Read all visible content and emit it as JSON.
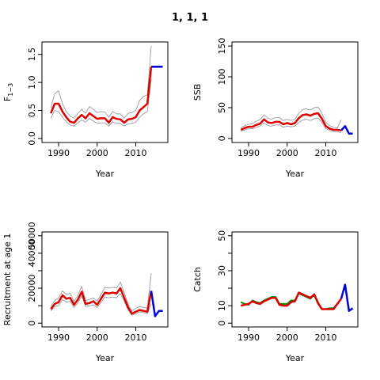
{
  "figure": {
    "title": "1, 1, 1"
  },
  "chart_data": [
    {
      "type": "line",
      "ylabel": "F",
      "ylabel_sub": "1−3",
      "xlabel": "Year",
      "xlim": [
        1987,
        2017
      ],
      "ylim": [
        0,
        1.65
      ],
      "xticks": [
        1990,
        2000,
        2010
      ],
      "yticks": [
        0.0,
        0.5,
        1.0,
        1.5
      ],
      "ytick_labels": [
        "0.0",
        "0.5",
        "1.0",
        "1.5"
      ],
      "series": [
        {
          "color": "#e00000",
          "role": "estimate",
          "x": [
            1988,
            1989,
            1990,
            1991,
            1992,
            1993,
            1994,
            1995,
            1996,
            1997,
            1998,
            1999,
            2000,
            2001,
            2002,
            2003,
            2004,
            2005,
            2006,
            2007,
            2008,
            2009,
            2010,
            2011,
            2012,
            2013,
            2014
          ],
          "y": [
            0.45,
            0.62,
            0.62,
            0.48,
            0.38,
            0.3,
            0.28,
            0.36,
            0.42,
            0.36,
            0.45,
            0.4,
            0.35,
            0.36,
            0.36,
            0.28,
            0.38,
            0.35,
            0.34,
            0.28,
            0.34,
            0.35,
            0.38,
            0.5,
            0.56,
            0.62,
            1.28
          ]
        },
        {
          "color": "#909090",
          "role": "upper",
          "x": [
            1988,
            1989,
            1990,
            1991,
            1992,
            1993,
            1994,
            1995,
            1996,
            1997,
            1998,
            1999,
            2000,
            2001,
            2002,
            2003,
            2004,
            2005,
            2006,
            2007,
            2008,
            2009,
            2010,
            2011,
            2012,
            2013,
            2014
          ],
          "y": [
            0.55,
            0.8,
            0.85,
            0.62,
            0.48,
            0.4,
            0.36,
            0.45,
            0.52,
            0.45,
            0.57,
            0.52,
            0.46,
            0.48,
            0.47,
            0.38,
            0.48,
            0.44,
            0.44,
            0.36,
            0.45,
            0.46,
            0.5,
            0.68,
            0.75,
            0.78,
            1.65
          ]
        },
        {
          "color": "#909090",
          "role": "lower",
          "x": [
            1988,
            1989,
            1990,
            1991,
            1992,
            1993,
            1994,
            1995,
            1996,
            1997,
            1998,
            1999,
            2000,
            2001,
            2002,
            2003,
            2004,
            2005,
            2006,
            2007,
            2008,
            2009,
            2010,
            2011,
            2012,
            2013,
            2014
          ],
          "y": [
            0.36,
            0.5,
            0.48,
            0.38,
            0.3,
            0.24,
            0.22,
            0.28,
            0.33,
            0.29,
            0.36,
            0.31,
            0.27,
            0.28,
            0.28,
            0.22,
            0.3,
            0.27,
            0.27,
            0.22,
            0.26,
            0.27,
            0.29,
            0.38,
            0.44,
            0.48,
            1.05
          ]
        },
        {
          "color": "#0000dd",
          "role": "projection",
          "x": [
            2014,
            2015,
            2016,
            2017
          ],
          "y": [
            1.28,
            1.28,
            1.28,
            1.28
          ]
        }
      ]
    },
    {
      "type": "line",
      "ylabel": "SSB",
      "ylabel_sub": "",
      "xlabel": "Year",
      "xlim": [
        1987,
        2017
      ],
      "ylim": [
        0,
        150
      ],
      "xticks": [
        1990,
        2000,
        2010
      ],
      "yticks": [
        0,
        50,
        100,
        150
      ],
      "ytick_labels": [
        "0",
        "50",
        "100",
        "150"
      ],
      "series": [
        {
          "color": "#e00000",
          "role": "estimate",
          "x": [
            1988,
            1989,
            1990,
            1991,
            1992,
            1993,
            1994,
            1995,
            1996,
            1997,
            1998,
            1999,
            2000,
            2001,
            2002,
            2003,
            2004,
            2005,
            2006,
            2007,
            2008,
            2009,
            2010,
            2011,
            2012,
            2013,
            2014
          ],
          "y": [
            14,
            17,
            19,
            19,
            22,
            24,
            31,
            26,
            25,
            27,
            27,
            23,
            25,
            23,
            25,
            33,
            38,
            39,
            37,
            40,
            41,
            32,
            20,
            16,
            14,
            14,
            13
          ]
        },
        {
          "color": "#909090",
          "role": "upper",
          "x": [
            1988,
            1989,
            1990,
            1991,
            1992,
            1993,
            1994,
            1995,
            1996,
            1997,
            1998,
            1999,
            2000,
            2001,
            2002,
            2003,
            2004,
            2005,
            2006,
            2007,
            2008,
            2009,
            2010,
            2011,
            2012,
            2013,
            2014
          ],
          "y": [
            17,
            21,
            23,
            24,
            28,
            31,
            38,
            33,
            31,
            34,
            34,
            29,
            31,
            29,
            31,
            41,
            47,
            48,
            46,
            50,
            51,
            41,
            26,
            21,
            18,
            17,
            30
          ]
        },
        {
          "color": "#909090",
          "role": "lower",
          "x": [
            1988,
            1989,
            1990,
            1991,
            1992,
            1993,
            1994,
            1995,
            1996,
            1997,
            1998,
            1999,
            2000,
            2001,
            2002,
            2003,
            2004,
            2005,
            2006,
            2007,
            2008,
            2009,
            2010,
            2011,
            2012,
            2013,
            2014
          ],
          "y": [
            12,
            14,
            16,
            16,
            18,
            20,
            25,
            21,
            20,
            22,
            22,
            18,
            20,
            19,
            20,
            26,
            30,
            31,
            29,
            32,
            33,
            26,
            16,
            13,
            11,
            11,
            9
          ]
        },
        {
          "color": "#0000dd",
          "role": "projection",
          "x": [
            2014,
            2015,
            2016,
            2017
          ],
          "y": [
            13,
            20,
            8,
            8
          ]
        }
      ]
    },
    {
      "type": "line",
      "ylabel": "Recruitment at age 1",
      "ylabel_sub": "",
      "xlabel": "Year",
      "xlim": [
        1987,
        2017
      ],
      "ylim": [
        0,
        50000
      ],
      "xticks": [
        1990,
        2000,
        2010
      ],
      "yticks": [
        0,
        10000,
        20000,
        30000,
        40000,
        50000
      ],
      "ytick_labels": [
        "0",
        "",
        "20000",
        "",
        "40000",
        "50000"
      ],
      "series": [
        {
          "color": "#e00000",
          "role": "estimate",
          "x": [
            1988,
            1989,
            1990,
            1991,
            1992,
            1993,
            1994,
            1995,
            1996,
            1997,
            1998,
            1999,
            2000,
            2001,
            2002,
            2003,
            2004,
            2005,
            2006,
            2007,
            2008,
            2009,
            2010,
            2011,
            2012,
            2013,
            2014
          ],
          "y": [
            8000,
            11000,
            12000,
            16000,
            14000,
            14500,
            10500,
            13500,
            18000,
            11000,
            11500,
            12500,
            10500,
            14000,
            17500,
            17000,
            17500,
            17000,
            20000,
            14500,
            9000,
            5500,
            6500,
            7500,
            7000,
            6500,
            18500
          ]
        },
        {
          "color": "#909090",
          "role": "upper",
          "x": [
            1988,
            1989,
            1990,
            1991,
            1992,
            1993,
            1994,
            1995,
            1996,
            1997,
            1998,
            1999,
            2000,
            2001,
            2002,
            2003,
            2004,
            2005,
            2006,
            2007,
            2008,
            2009,
            2010,
            2011,
            2012,
            2013,
            2014
          ],
          "y": [
            9500,
            13000,
            14500,
            18500,
            16500,
            17000,
            12500,
            16000,
            21000,
            13000,
            13500,
            14500,
            12500,
            16500,
            20500,
            20000,
            20500,
            20000,
            23500,
            17500,
            11000,
            7000,
            8500,
            9500,
            9000,
            8500,
            28500
          ]
        },
        {
          "color": "#909090",
          "role": "lower",
          "x": [
            1988,
            1989,
            1990,
            1991,
            1992,
            1993,
            1994,
            1995,
            1996,
            1997,
            1998,
            1999,
            2000,
            2001,
            2002,
            2003,
            2004,
            2005,
            2006,
            2007,
            2008,
            2009,
            2010,
            2011,
            2012,
            2013,
            2014
          ],
          "y": [
            7000,
            9500,
            10000,
            13500,
            12000,
            12500,
            9000,
            11500,
            15500,
            9500,
            10000,
            10500,
            9000,
            12000,
            15000,
            14500,
            15000,
            14500,
            17000,
            12500,
            7500,
            4500,
            5500,
            6500,
            6000,
            5500,
            11000
          ]
        },
        {
          "color": "#0000dd",
          "role": "projection",
          "x": [
            2014,
            2015,
            2016,
            2017
          ],
          "y": [
            18500,
            4000,
            7000,
            7000
          ]
        }
      ]
    },
    {
      "type": "line",
      "ylabel": "Catch",
      "ylabel_sub": "",
      "xlabel": "Year",
      "xlim": [
        1987,
        2017
      ],
      "ylim": [
        0,
        50
      ],
      "xticks": [
        1990,
        2000,
        2010
      ],
      "yticks": [
        0,
        10,
        20,
        30,
        40,
        50
      ],
      "ytick_labels": [
        "0",
        "10",
        "",
        "30",
        "",
        "50"
      ],
      "series": [
        {
          "color": "#008800",
          "role": "observed",
          "x": [
            1988,
            1989,
            1990,
            1991,
            1992,
            1993,
            1994,
            1995,
            1996,
            1997,
            1998,
            1999,
            2000,
            2001,
            2002,
            2003,
            2004,
            2005,
            2006,
            2007,
            2008,
            2009,
            2010,
            2011,
            2012,
            2013,
            2014
          ],
          "y": [
            12,
            11,
            10.5,
            13,
            12,
            11.5,
            13,
            14,
            15,
            15,
            11,
            11,
            11,
            13,
            13,
            17,
            16,
            15,
            14,
            16,
            11,
            8,
            8,
            8.5,
            8.5,
            11,
            14
          ]
        },
        {
          "color": "#e00000",
          "role": "estimate",
          "x": [
            1988,
            1989,
            1990,
            1991,
            1992,
            1993,
            1994,
            1995,
            1996,
            1997,
            1998,
            1999,
            2000,
            2001,
            2002,
            2003,
            2004,
            2005,
            2006,
            2007,
            2008,
            2009,
            2010,
            2011,
            2012,
            2013,
            2014
          ],
          "y": [
            10,
            10.5,
            11,
            12.5,
            11.5,
            11,
            12.5,
            13.5,
            14.5,
            14.5,
            10.5,
            10,
            10,
            12,
            12.5,
            17.5,
            16.5,
            15.5,
            14.5,
            16.5,
            11.5,
            8,
            8,
            8,
            8,
            11,
            14
          ]
        },
        {
          "color": "#0000dd",
          "role": "projection",
          "x": [
            2014,
            2015,
            2016,
            2017
          ],
          "y": [
            14,
            22,
            7,
            8.5
          ]
        }
      ]
    }
  ]
}
